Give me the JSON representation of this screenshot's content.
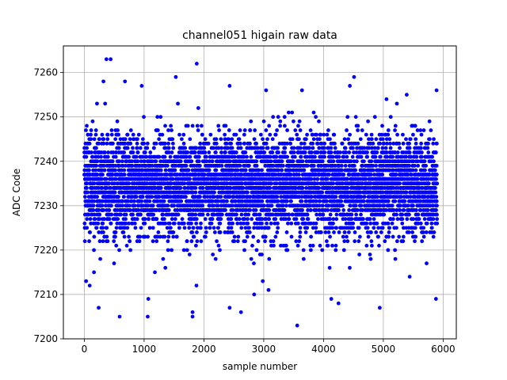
{
  "chart_data": {
    "type": "scatter",
    "title": "channel051 higain raw data",
    "xlabel": "sample number",
    "ylabel": "ADC Code",
    "xlim": [
      -350,
      6220
    ],
    "ylim": [
      7200,
      7266
    ],
    "x_ticks": [
      0,
      1000,
      2000,
      3000,
      4000,
      5000,
      6000
    ],
    "y_ticks": [
      7200,
      7210,
      7220,
      7230,
      7240,
      7250,
      7260
    ],
    "grid": true,
    "marker_color": "#0000ff",
    "n_samples": 5900,
    "x_start": 0,
    "x_end": 5899,
    "y_baseline": 7234.5,
    "y_dense_band": [
      7222,
      7246
    ],
    "outliers": [
      {
        "x": 370,
        "y": 7263
      },
      {
        "x": 440,
        "y": 7263
      },
      {
        "x": 1880,
        "y": 7262
      },
      {
        "x": 320,
        "y": 7258
      },
      {
        "x": 680,
        "y": 7258
      },
      {
        "x": 1530,
        "y": 7259
      },
      {
        "x": 4510,
        "y": 7259
      },
      {
        "x": 4440,
        "y": 7257
      },
      {
        "x": 2430,
        "y": 7257
      },
      {
        "x": 960,
        "y": 7257
      },
      {
        "x": 3040,
        "y": 7256
      },
      {
        "x": 3640,
        "y": 7256
      },
      {
        "x": 5890,
        "y": 7256
      },
      {
        "x": 3560,
        "y": 7203
      },
      {
        "x": 1060,
        "y": 7205
      },
      {
        "x": 590,
        "y": 7205
      },
      {
        "x": 1810,
        "y": 7205
      },
      {
        "x": 1810,
        "y": 7206
      },
      {
        "x": 2620,
        "y": 7206
      },
      {
        "x": 240,
        "y": 7207
      },
      {
        "x": 2430,
        "y": 7207
      },
      {
        "x": 4940,
        "y": 7207
      },
      {
        "x": 5880,
        "y": 7209
      },
      {
        "x": 1070,
        "y": 7209
      },
      {
        "x": 4250,
        "y": 7208
      },
      {
        "x": 2840,
        "y": 7210
      },
      {
        "x": 3080,
        "y": 7211
      },
      {
        "x": 4130,
        "y": 7209
      },
      {
        "x": 30,
        "y": 7213
      },
      {
        "x": 90,
        "y": 7212
      },
      {
        "x": 5440,
        "y": 7214
      }
    ]
  }
}
